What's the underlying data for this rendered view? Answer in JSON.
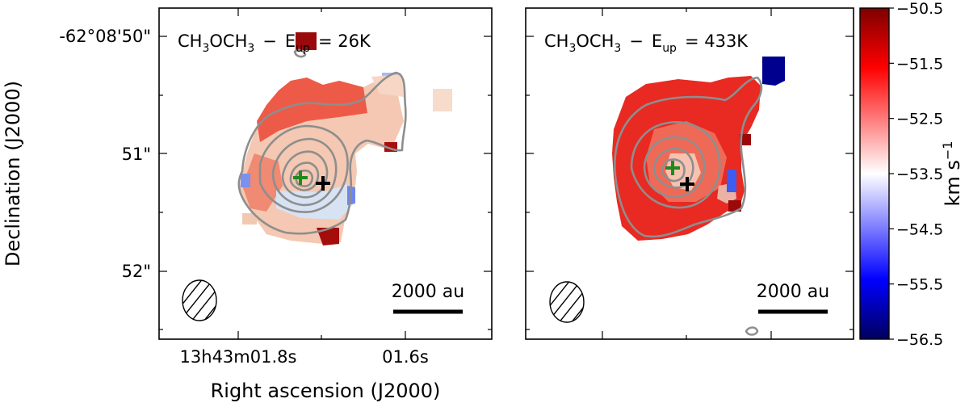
{
  "chart_data": [
    {
      "type": "heatmap",
      "panel": "left",
      "title_species": "CH",
      "title_sub3a": "3",
      "title_mid": "OCH",
      "title_sub3b": "3",
      "title_dash": "−",
      "title_E": "E",
      "title_sub_up": "up",
      "title_eq": "= 26K",
      "xlabel": "Right ascension (J2000)",
      "ylabel": "Declination (J2000)",
      "xticklabels": [
        "13h43m01.8s",
        "01.6s"
      ],
      "yticklabels": [
        "-62°08'50\"",
        "51\"",
        "52\""
      ],
      "scalebar_label": "2000 au",
      "markers": [
        {
          "name": "continuum-peak",
          "color": "#1e8a1e"
        },
        {
          "name": "reference-source",
          "color": "#000000"
        }
      ],
      "velocity_map_description_values_kms": [
        -51.5,
        -52.5,
        -53.0,
        -53.5,
        -54.0
      ]
    },
    {
      "type": "heatmap",
      "panel": "right",
      "title_species": "CH",
      "title_sub3a": "3",
      "title_mid": "OCH",
      "title_sub3b": "3",
      "title_dash": "−",
      "title_E": "E",
      "title_sub_up": "up",
      "title_eq": "= 433K",
      "scalebar_label": "2000 au",
      "markers": [
        {
          "name": "continuum-peak",
          "color": "#1e8a1e"
        },
        {
          "name": "reference-source",
          "color": "#000000"
        }
      ],
      "velocity_map_description_values_kms": [
        -51.5,
        -52.0,
        -53.0,
        -56.5
      ]
    }
  ],
  "colorbar": {
    "label": "km s",
    "label_sup": "−1",
    "vmin": -56.5,
    "vmax": -50.5,
    "ticks": [
      "−50.5",
      "−51.5",
      "−52.5",
      "−53.5",
      "−54.5",
      "−55.5",
      "−56.5"
    ],
    "colormap": "seismic_r",
    "colors": [
      "#00005e",
      "#0000ff",
      "#ffffff",
      "#ff0000",
      "#7e0000"
    ]
  }
}
